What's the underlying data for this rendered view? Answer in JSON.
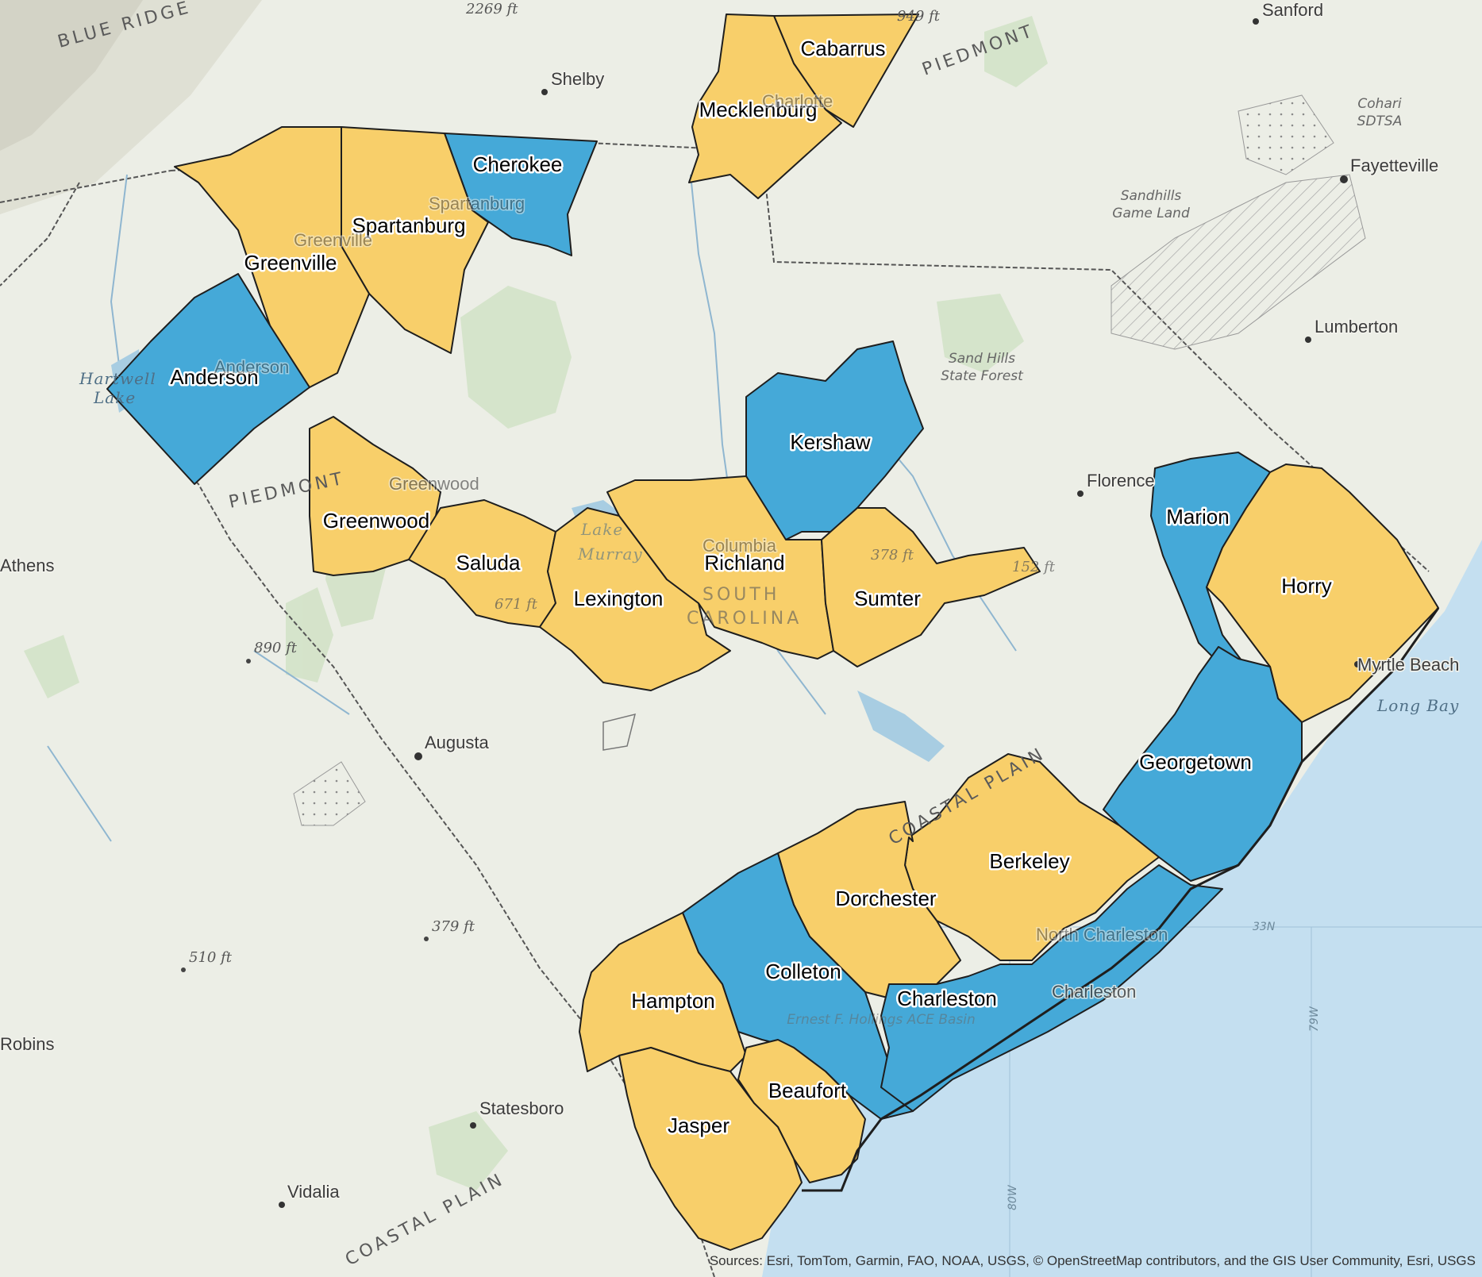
{
  "colors": {
    "yellow": "#f8cf6a",
    "blue": "#45a9d8",
    "land": "#eceee6",
    "ocean": "#c4dff0",
    "boundary": "#1e1e1e"
  },
  "counties": [
    {
      "name": "Cabarrus",
      "color": "yellow"
    },
    {
      "name": "Mecklenburg",
      "color": "yellow"
    },
    {
      "name": "Cherokee",
      "color": "blue"
    },
    {
      "name": "Spartanburg",
      "color": "yellow"
    },
    {
      "name": "Greenville",
      "color": "yellow"
    },
    {
      "name": "Anderson",
      "color": "blue"
    },
    {
      "name": "Kershaw",
      "color": "blue"
    },
    {
      "name": "Greenwood",
      "color": "yellow"
    },
    {
      "name": "Saluda",
      "color": "yellow"
    },
    {
      "name": "Lexington",
      "color": "yellow"
    },
    {
      "name": "Richland",
      "color": "yellow"
    },
    {
      "name": "Sumter",
      "color": "yellow"
    },
    {
      "name": "Marion",
      "color": "blue"
    },
    {
      "name": "Horry",
      "color": "yellow"
    },
    {
      "name": "Georgetown",
      "color": "blue"
    },
    {
      "name": "Berkeley",
      "color": "yellow"
    },
    {
      "name": "Dorchester",
      "color": "yellow"
    },
    {
      "name": "Colleton",
      "color": "blue"
    },
    {
      "name": "Charleston",
      "color": "blue"
    },
    {
      "name": "Hampton",
      "color": "yellow"
    },
    {
      "name": "Beaufort",
      "color": "yellow"
    },
    {
      "name": "Jasper",
      "color": "yellow"
    }
  ],
  "places": [
    "Sanford",
    "Shelby",
    "Fayetteville",
    "Lumberton",
    "Florence",
    "Athens",
    "Augusta",
    "Myrtle Beach",
    "Robins",
    "Statesboro",
    "Vidalia",
    "Greenwood",
    "Charlotte",
    "Spartanburg",
    "Greenville",
    "Anderson",
    "Columbia",
    "North Charleston",
    "Charleston"
  ],
  "regions": [
    "BLUE RIDGE",
    "PIEDMONT",
    "PIEDMONT",
    "COASTAL PLAIN",
    "COASTAL PLAIN",
    "SOUTH",
    "CAROLINA"
  ],
  "parks": [
    "Cohari",
    "SDTSA",
    "Sandhills",
    "Game Land",
    "Sand Hills",
    "State Forest",
    "Ernest F. Hollings ACE Basin"
  ],
  "water": [
    "Hartwell",
    "Lake",
    "Lake",
    "Murray",
    "Long Bay"
  ],
  "elevations": [
    "2269 ft",
    "949 ft",
    "890 ft",
    "671 ft",
    "378 ft",
    "152 ft",
    "379 ft",
    "510 ft"
  ],
  "graticule": [
    "33N",
    "80W",
    "79W"
  ],
  "attribution": "Sources: Esri, TomTom, Garmin, FAO, NOAA, USGS, © OpenStreetMap contributors, and the GIS User Community, Esri, USGS"
}
